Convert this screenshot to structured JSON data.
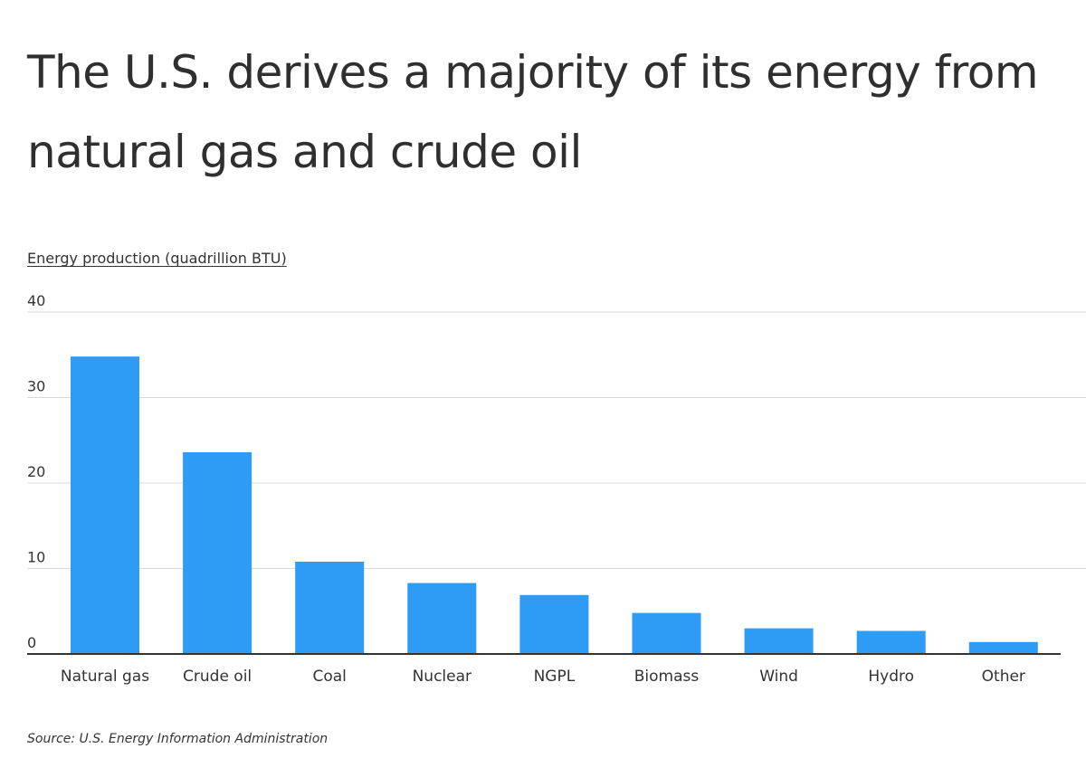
{
  "title": "The U.S. derives a majority of its energy from natural gas and crude oil",
  "source": "Source:  U.S. Energy Information Administration",
  "colors": {
    "bar": "#2e9bf5",
    "grid": "#d9d9d9",
    "axis": "#333333"
  },
  "chart_data": {
    "type": "bar",
    "ylabel": "Energy production (quadrillion BTU)",
    "categories": [
      "Natural gas",
      "Crude oil",
      "Coal",
      "Nuclear",
      "NGPL",
      "Biomass",
      "Wind",
      "Hydro",
      "Other"
    ],
    "values": [
      34.8,
      23.6,
      10.8,
      8.3,
      6.9,
      4.8,
      3.0,
      2.7,
      1.4
    ],
    "ylim": [
      0,
      40
    ],
    "yticks": [
      0,
      10,
      20,
      30,
      40
    ],
    "grid": true,
    "legend": "none"
  }
}
